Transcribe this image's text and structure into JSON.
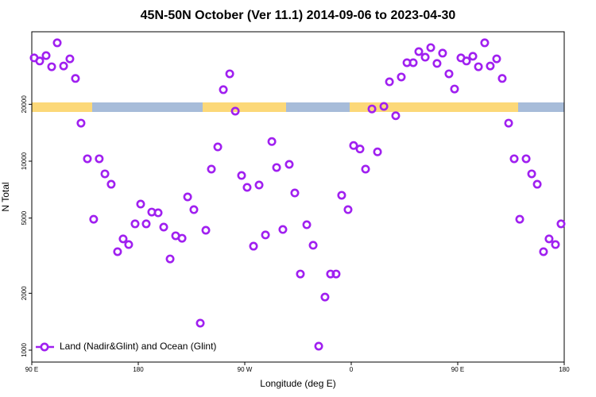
{
  "chart_data": {
    "type": "scatter",
    "title": "45N-50N October (Ver 11.1)   2014-09-06 to 2023-04-30",
    "xlabel": "Longitude (deg E)",
    "ylabel": "N Total",
    "log_y": true,
    "legend": "lower left",
    "series": [
      {
        "name": "Land (Nadir&Glint) and Ocean (Glint)",
        "color": "#a020f0",
        "x": [
          92.0,
          96.7,
          102.1,
          106.8,
          111.5,
          116.9,
          122.2,
          126.9,
          131.6,
          137.0,
          142.3,
          147.0,
          151.8,
          157.1,
          162.5,
          167.2,
          171.9,
          177.3,
          182.0,
          186.7,
          191.4,
          196.8,
          201.5,
          206.9,
          211.6,
          217.0,
          221.7,
          227.0,
          232.4,
          237.1,
          241.8,
          247.2,
          251.9,
          257.3,
          262.0,
          267.3,
          272.0,
          277.4,
          282.1,
          287.5,
          292.9,
          296.9,
          302.2,
          307.6,
          312.3,
          317.0,
          322.4,
          327.8,
          332.5,
          337.8,
          342.5,
          347.2,
          351.9,
          357.3,
          362.0,
          367.4,
          372.1,
          377.5,
          382.2,
          387.6,
          392.3,
          397.6,
          402.3,
          407.1,
          412.4,
          417.1,
          422.5,
          427.2,
          432.5,
          437.2,
          442.6,
          447.3,
          452.7,
          457.4,
          462.8,
          467.5,
          472.8,
          477.5,
          482.9,
          487.6,
          493.0,
          497.7,
          502.4,
          507.8,
          512.5,
          517.2,
          522.5,
          527.2,
          532.6,
          537.3
        ],
        "values": [
          35200,
          33900,
          36200,
          31600,
          42300,
          31900,
          34800,
          27400,
          15900,
          10300,
          4930,
          10300,
          8570,
          7550,
          3320,
          3880,
          3620,
          4660,
          5930,
          4660,
          5380,
          5330,
          4480,
          3040,
          4030,
          3910,
          6470,
          5540,
          1390,
          4310,
          9080,
          11900,
          23900,
          29000,
          18400,
          8400,
          7270,
          3550,
          7480,
          4070,
          12700,
          9260,
          4350,
          9620,
          6790,
          2530,
          4610,
          3590,
          1050,
          1910,
          2530,
          2530,
          6600,
          5540,
          12100,
          11600,
          9080,
          18900,
          11200,
          19500,
          26300,
          17400,
          27900,
          33200,
          33200,
          38000,
          35500,
          39900,
          32900,
          37300,
          29000,
          24100,
          35200,
          33900,
          35900,
          31600,
          42300,
          31900,
          34800,
          27400,
          15900,
          10300,
          4930,
          10300,
          8570,
          7550,
          3320,
          3880,
          3620,
          4660
        ]
      }
    ],
    "xlim": [
      90,
      540
    ],
    "ylim": [
      865,
      48400
    ],
    "xticks": [
      {
        "value": 90,
        "label": "90 E"
      },
      {
        "value": 180,
        "label": "180"
      },
      {
        "value": 270,
        "label": "90 W"
      },
      {
        "value": 360,
        "label": "0"
      },
      {
        "value": 450,
        "label": "90 E"
      },
      {
        "value": 540,
        "label": "180"
      }
    ],
    "yticks": [
      1000,
      2000,
      5000,
      10000,
      20000
    ]
  }
}
